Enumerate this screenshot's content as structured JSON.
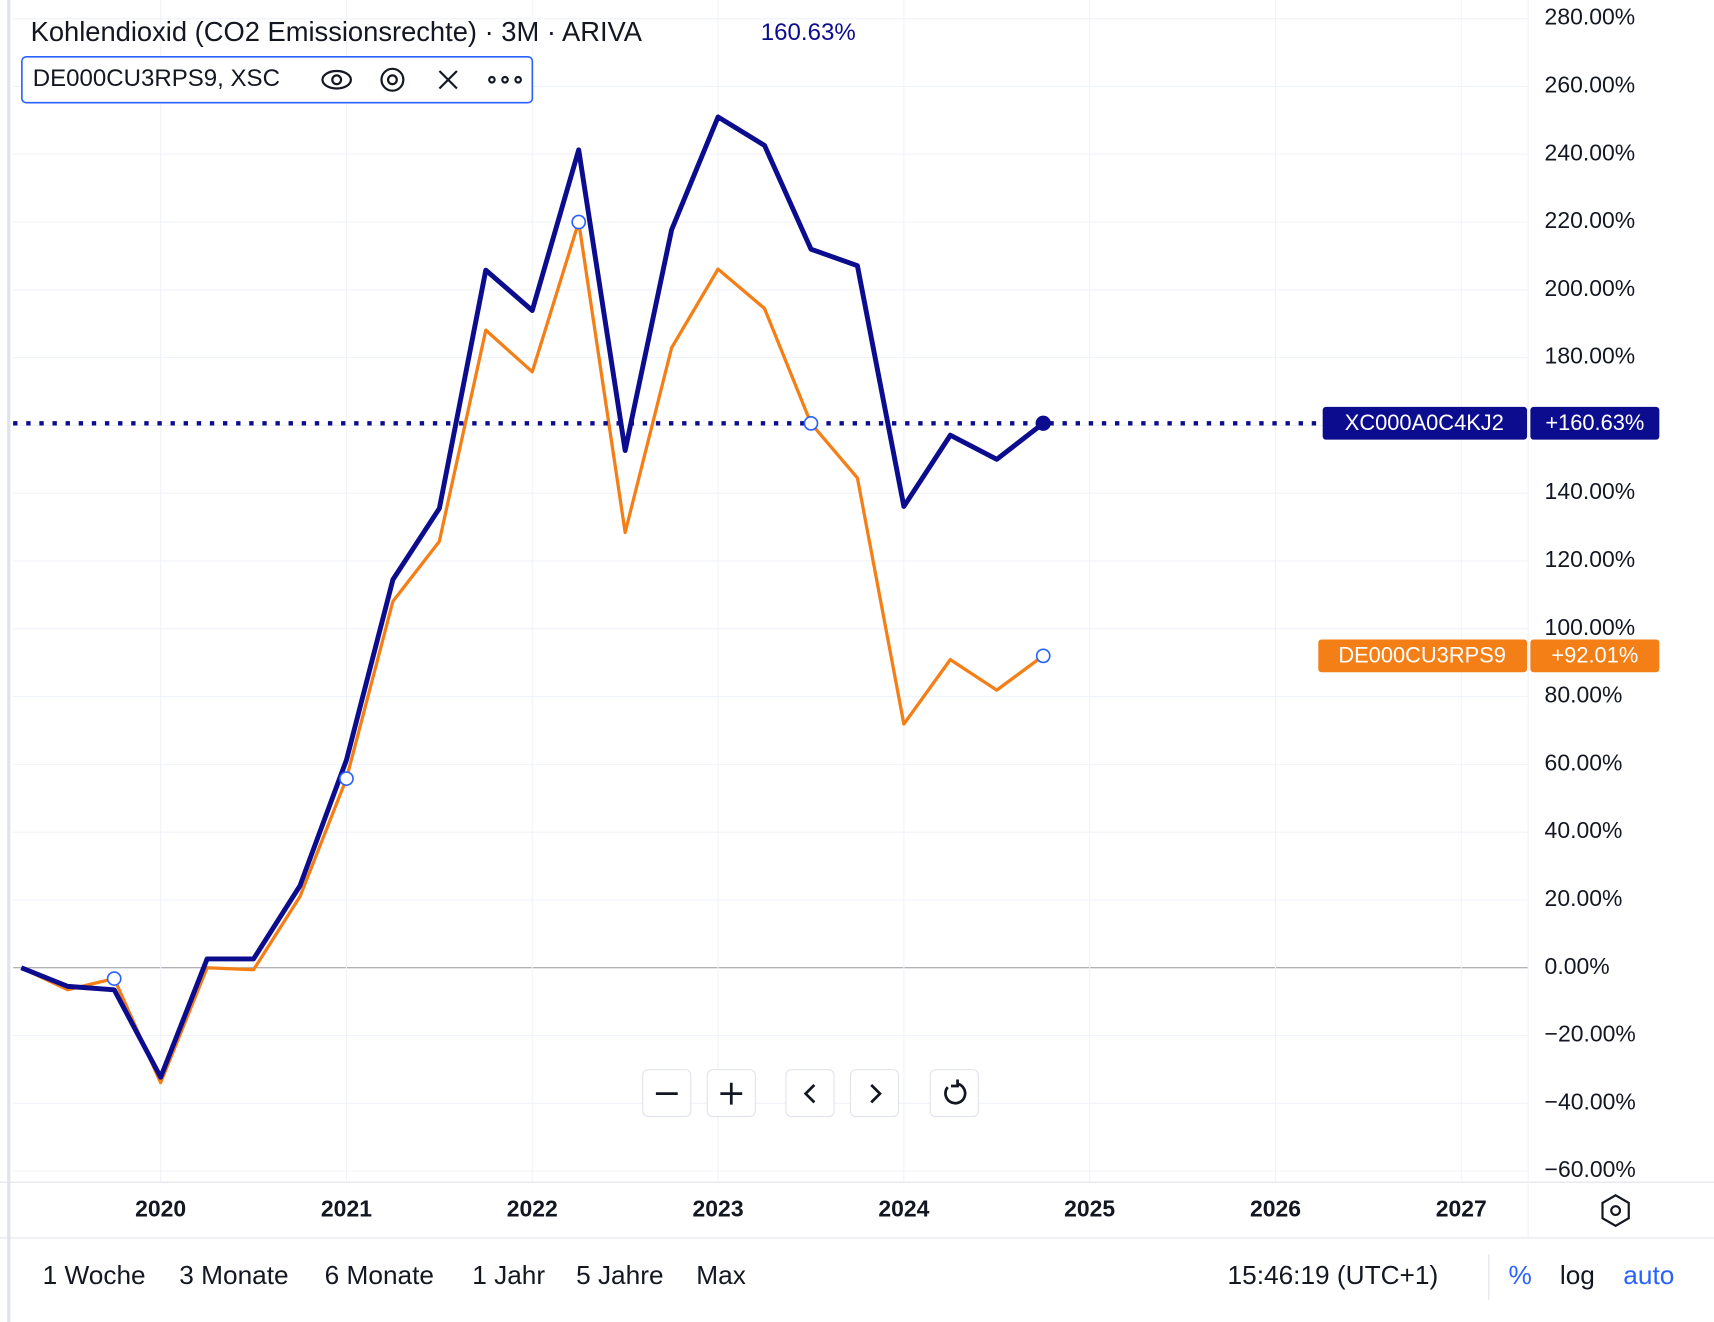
{
  "chart_data": {
    "type": "line",
    "title": "Kohlendioxid (CO2 Emissionsrechte) · 3M · ARIVA",
    "title_value": "160.63%",
    "legend_label": "DE000CU3RPS9, XSC",
    "x": [
      2019.25,
      2019.5,
      2019.75,
      2020,
      2020.25,
      2020.5,
      2020.75,
      2021,
      2021.25,
      2021.5,
      2021.75,
      2022,
      2022.25,
      2022.5,
      2022.75,
      2023,
      2023.25,
      2023.5,
      2023.75,
      2024,
      2024.25,
      2024.5,
      2024.75
    ],
    "series": [
      {
        "name": "XC000A0C4KJ2",
        "color": "#0c0c8e",
        "values": [
          0,
          -5.5,
          -6.5,
          -32.3,
          2.6,
          2.6,
          24.2,
          61.3,
          114.5,
          135.5,
          205.8,
          193.9,
          241.3,
          152.6,
          217.7,
          251,
          242.6,
          212,
          207.1,
          136.1,
          157.1,
          150,
          160.63
        ],
        "last_value_label": "+160.63%"
      },
      {
        "name": "DE000CU3RPS9",
        "color": "#f57f17",
        "values": [
          0,
          -6.5,
          -3.2,
          -33.9,
          0,
          -0.6,
          21,
          55.8,
          108.1,
          125.8,
          188.1,
          175.8,
          220,
          128.4,
          182.9,
          206.1,
          194.5,
          160.6,
          144.5,
          71.9,
          90.9,
          81.9,
          92.01
        ],
        "last_value_label": "+92.01%"
      }
    ],
    "xlim": [
      2019.206,
      2027.36
    ],
    "xticks": [
      2020,
      2021,
      2022,
      2023,
      2024,
      2025,
      2026,
      2027
    ],
    "ylim": [
      -61,
      285.5
    ],
    "yticks": [
      {
        "value": -60,
        "label": "−60.00%"
      },
      {
        "value": -40,
        "label": "−40.00%"
      },
      {
        "value": -20,
        "label": "−20.00%"
      },
      {
        "value": 0,
        "label": "0.00%"
      },
      {
        "value": 20,
        "label": "20.00%"
      },
      {
        "value": 40,
        "label": "40.00%"
      },
      {
        "value": 60,
        "label": "60.00%"
      },
      {
        "value": 80,
        "label": "80.00%"
      },
      {
        "value": 100,
        "label": "100.00%"
      },
      {
        "value": 120,
        "label": "120.00%"
      },
      {
        "value": 140,
        "label": "140.00%"
      },
      {
        "value": 160,
        "label": "160.00%"
      },
      {
        "value": 180,
        "label": "180.00%"
      },
      {
        "value": 200,
        "label": "200.00%"
      },
      {
        "value": 220,
        "label": "220.00%"
      },
      {
        "value": 240,
        "label": "240.00%"
      },
      {
        "value": 260,
        "label": "260.00%"
      },
      {
        "value": 280,
        "label": "280.00%"
      }
    ],
    "grid": true
  },
  "range_buttons": [
    "1 Woche",
    "3 Monate",
    "6 Monate",
    "1 Jahr",
    "5 Jahre",
    "Max"
  ],
  "time": "15:46:19 (UTC+1)",
  "scale_options": [
    "%",
    "log",
    "auto"
  ]
}
